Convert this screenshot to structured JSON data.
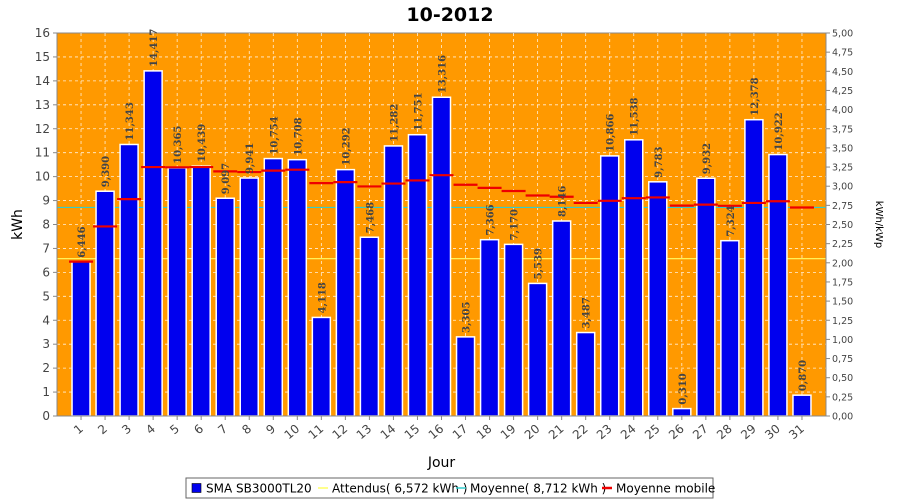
{
  "chart_data": {
    "type": "bar",
    "title": "10-2012",
    "xlabel": "Jour",
    "ylabel": "kWh",
    "y2label": "kWh/kWp",
    "ylim": [
      0,
      16
    ],
    "y2lim": [
      0,
      5
    ],
    "y2ticks": [
      "0,00",
      "0,25",
      "0,50",
      "0,75",
      "1,00",
      "1,25",
      "1,50",
      "1,75",
      "2,00",
      "2,25",
      "2,50",
      "2,75",
      "3,00",
      "3,25",
      "3,50",
      "3,75",
      "4,00",
      "4,25",
      "4,50",
      "4,75",
      "5,00"
    ],
    "grid": true,
    "categories": [
      "1",
      "2",
      "3",
      "4",
      "5",
      "6",
      "7",
      "8",
      "9",
      "10",
      "11",
      "12",
      "13",
      "14",
      "15",
      "16",
      "17",
      "18",
      "19",
      "20",
      "21",
      "22",
      "23",
      "24",
      "25",
      "26",
      "27",
      "28",
      "29",
      "30",
      "31"
    ],
    "series": [
      {
        "name": "SMA SB3000TL20",
        "kind": "bar",
        "color": "#0000ee",
        "values": [
          6.446,
          9.39,
          11.343,
          14.417,
          10.365,
          10.439,
          9.097,
          9.941,
          10.754,
          10.708,
          4.118,
          10.292,
          7.468,
          11.282,
          11.751,
          13.316,
          3.305,
          7.366,
          7.17,
          5.539,
          8.146,
          3.487,
          10.866,
          11.538,
          9.783,
          0.31,
          9.932,
          7.324,
          12.378,
          10.922,
          0.87
        ],
        "labels": [
          "6,446",
          "9,390",
          "11,343",
          "14,417",
          "10,365",
          "10,439",
          "9,097",
          "9,941",
          "10,754",
          "10,708",
          "4,118",
          "10,292",
          "7,468",
          "11,282",
          "11,751",
          "13,316",
          "3,305",
          "7,366",
          "7,170",
          "5,539",
          "8,146",
          "3,487",
          "10,866",
          "11,538",
          "9,783",
          "0,310",
          "9,932",
          "7,324",
          "12,378",
          "10,922",
          "0,870"
        ]
      },
      {
        "name": "Attendus( 6,572 kWh )",
        "kind": "hline",
        "color": "#ffff66",
        "value": 6.572
      },
      {
        "name": "Moyenne( 8,712 kWh )",
        "kind": "hline",
        "color": "#33cccc",
        "value": 8.712
      },
      {
        "name": "Moyenne mobile",
        "kind": "step",
        "color": "#ee0000",
        "values": [
          6.45,
          7.92,
          9.06,
          10.4,
          10.39,
          10.4,
          10.22,
          10.19,
          10.25,
          10.29,
          9.73,
          9.77,
          9.59,
          9.71,
          9.84,
          10.06,
          9.66,
          9.53,
          9.4,
          9.21,
          9.16,
          8.9,
          8.99,
          9.1,
          9.13,
          8.79,
          8.83,
          8.78,
          8.9,
          8.97,
          8.71
        ]
      }
    ],
    "legend_position": "bottom"
  }
}
